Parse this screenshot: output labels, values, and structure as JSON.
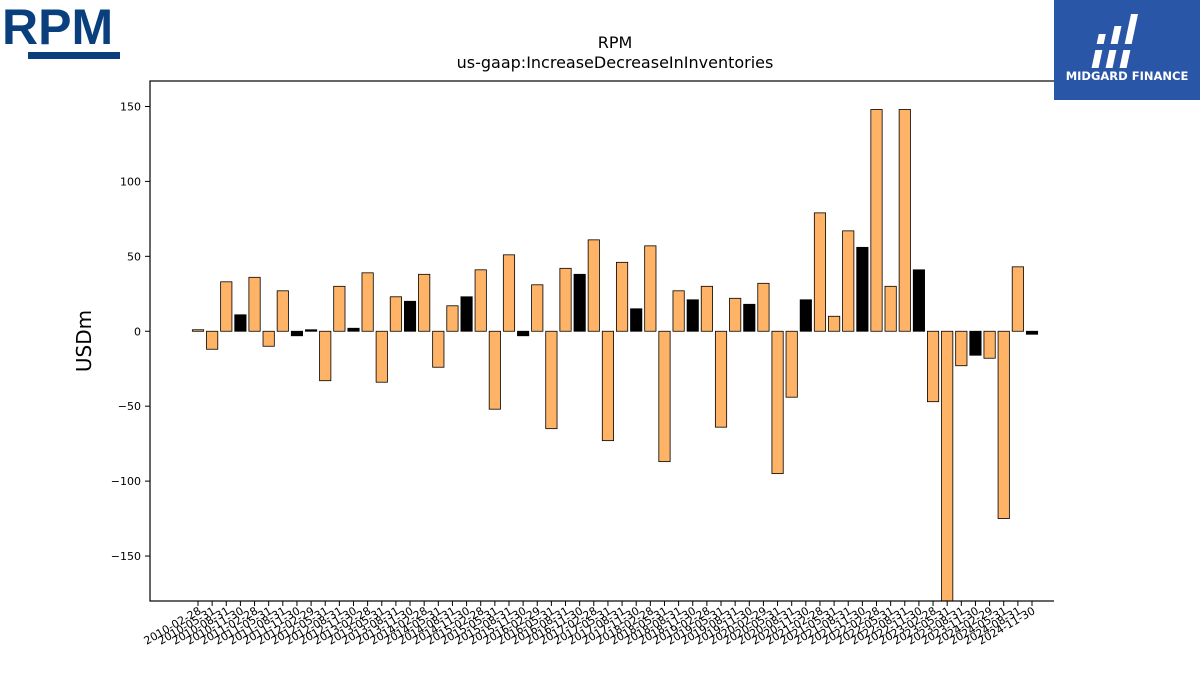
{
  "brand": {
    "company_logo_text": "RPM",
    "watermark_text": "MIDGARD FINANCE"
  },
  "colors": {
    "positive_highlight": "#ffb366",
    "black_bar": "#000000",
    "watermark_bg": "#2a56a8",
    "rpm_blue": "#0a3f7e"
  },
  "chart_data": {
    "type": "bar",
    "title": "RPM",
    "subtitle": "us-gaap:IncreaseDecreaseInInventories",
    "xlabel": "",
    "ylabel": "USDm",
    "ylim": [
      -180,
      167
    ],
    "yticks": [
      150,
      100,
      50,
      0,
      -50,
      -100,
      -150
    ],
    "ytick_labels": [
      "150",
      "100",
      "50",
      "0",
      "−50",
      "−100",
      "−150"
    ],
    "grid": false,
    "categories": [
      "2010-02-28",
      "2010-05-31",
      "2010-08-31",
      "2010-11-30",
      "2011-02-28",
      "2011-05-31",
      "2011-08-31",
      "2011-11-30",
      "2012-02-29",
      "2012-05-31",
      "2012-08-31",
      "2012-11-30",
      "2013-02-28",
      "2013-05-31",
      "2013-08-31",
      "2013-11-30",
      "2014-02-28",
      "2014-05-31",
      "2014-08-31",
      "2014-11-30",
      "2015-02-28",
      "2015-05-31",
      "2015-08-31",
      "2015-11-30",
      "2016-02-29",
      "2016-05-31",
      "2016-08-31",
      "2016-11-30",
      "2017-02-28",
      "2017-05-31",
      "2017-08-31",
      "2017-11-30",
      "2018-02-28",
      "2018-05-31",
      "2018-08-31",
      "2018-11-30",
      "2019-02-28",
      "2019-05-31",
      "2019-08-31",
      "2019-11-30",
      "2020-02-29",
      "2020-05-31",
      "2020-08-31",
      "2020-11-30",
      "2021-02-28",
      "2021-05-31",
      "2021-08-31",
      "2021-11-30",
      "2022-02-28",
      "2022-05-31",
      "2022-08-31",
      "2022-11-30",
      "2023-02-28",
      "2023-05-31",
      "2023-08-31",
      "2023-11-30",
      "2024-02-29",
      "2024-05-31",
      "2024-08-31",
      "2024-11-30"
    ],
    "values": [
      1,
      -12,
      33,
      11,
      36,
      -10,
      27,
      -3,
      1,
      -33,
      30,
      2,
      39,
      -34,
      23,
      20,
      38,
      -24,
      17,
      23,
      41,
      -52,
      51,
      -3,
      31,
      -65,
      42,
      38,
      61,
      -73,
      46,
      15,
      57,
      -87,
      27,
      21,
      30,
      -64,
      22,
      18,
      32,
      -95,
      -44,
      21,
      79,
      10,
      67,
      56,
      148,
      30,
      148,
      41,
      -47,
      -180,
      -23,
      -16,
      -18,
      -125,
      43,
      -2
    ],
    "bar_colors": [
      "#ffb366",
      "#ffb366",
      "#ffb366",
      "#000000",
      "#ffb366",
      "#ffb366",
      "#ffb366",
      "#000000",
      "#000000",
      "#ffb366",
      "#ffb366",
      "#000000",
      "#ffb366",
      "#ffb366",
      "#ffb366",
      "#000000",
      "#ffb366",
      "#ffb366",
      "#ffb366",
      "#000000",
      "#ffb366",
      "#ffb366",
      "#ffb366",
      "#000000",
      "#ffb366",
      "#ffb366",
      "#ffb366",
      "#000000",
      "#ffb366",
      "#ffb366",
      "#ffb366",
      "#000000",
      "#ffb366",
      "#ffb366",
      "#ffb366",
      "#000000",
      "#ffb366",
      "#ffb366",
      "#ffb366",
      "#000000",
      "#ffb366",
      "#ffb366",
      "#ffb366",
      "#000000",
      "#ffb366",
      "#ffb366",
      "#ffb366",
      "#000000",
      "#ffb366",
      "#ffb366",
      "#ffb366",
      "#000000",
      "#ffb366",
      "#ffb366",
      "#ffb366",
      "#000000",
      "#ffb366",
      "#ffb366",
      "#ffb366",
      "#000000"
    ]
  }
}
